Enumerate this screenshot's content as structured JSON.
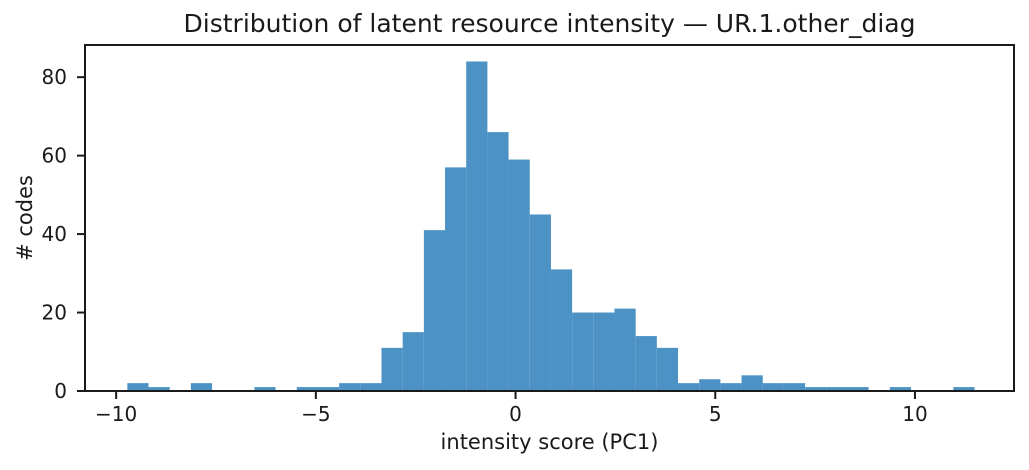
{
  "chart_data": {
    "type": "bar",
    "subtype": "histogram",
    "title": "Distribution of latent resource intensity — UR.1.other_diag",
    "xlabel": "intensity score (PC1)",
    "ylabel": "# codes",
    "bin_start": -9.72,
    "bin_width": 0.5303,
    "counts": [
      2,
      1,
      0,
      2,
      0,
      0,
      1,
      0,
      1,
      1,
      2,
      2,
      11,
      15,
      41,
      57,
      84,
      66,
      59,
      45,
      31,
      20,
      20,
      21,
      14,
      11,
      2,
      3,
      2,
      4,
      2,
      2,
      1,
      1,
      1,
      0,
      1,
      0,
      0,
      1
    ],
    "xticks": [
      -10,
      -5,
      0,
      5,
      10
    ],
    "xtick_labels": [
      "−10",
      "−5",
      "0",
      "5",
      "10"
    ],
    "yticks": [
      0,
      20,
      40,
      60,
      80
    ],
    "ytick_labels": [
      "0",
      "20",
      "40",
      "60",
      "80"
    ],
    "xlim": [
      -10.78,
      12.48
    ],
    "ylim": [
      0,
      88.2
    ],
    "grid": false,
    "legend": "none",
    "bar_color": "#4c92c4",
    "axis_color": "#1a1a1a",
    "background_color": "#ffffff"
  }
}
